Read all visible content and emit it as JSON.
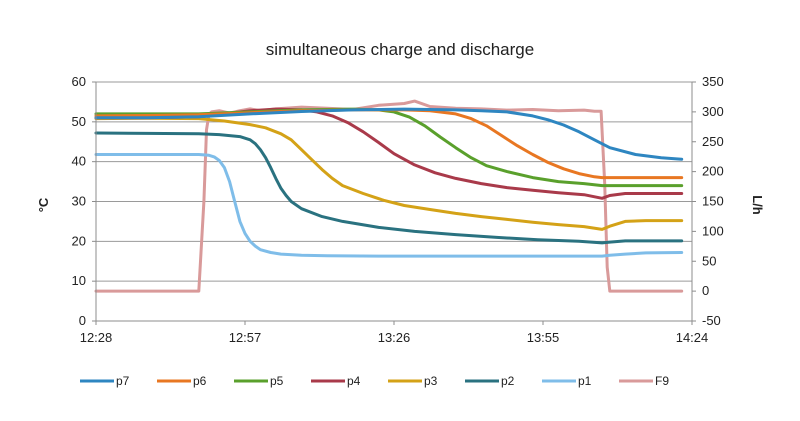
{
  "chart_data": {
    "type": "line",
    "title": "simultaneous charge and discharge",
    "ylabel": "°C",
    "y2label": "L/h",
    "xlim": [
      0,
      116
    ],
    "ylim": [
      0,
      60
    ],
    "y2lim": [
      -50,
      350
    ],
    "x_ticks": [
      {
        "value": 0,
        "label": "12:28"
      },
      {
        "value": 29,
        "label": "12:57"
      },
      {
        "value": 58,
        "label": "13:26"
      },
      {
        "value": 87,
        "label": "13:55"
      },
      {
        "value": 116,
        "label": "14:24"
      }
    ],
    "y_ticks": [
      0,
      10,
      20,
      30,
      40,
      50,
      60
    ],
    "y2_ticks": [
      -50,
      0,
      50,
      100,
      150,
      200,
      250,
      300,
      350
    ],
    "grid": true,
    "legend_position": "bottom",
    "series": [
      {
        "name": "p7",
        "axis": "left",
        "color": "#2e86c1",
        "x": [
          0,
          10,
          20,
          30,
          40,
          50,
          60,
          70,
          75,
          80,
          85,
          88,
          91,
          94,
          97,
          100,
          105,
          110,
          114
        ],
        "y": [
          51,
          51,
          51.3,
          52,
          52.6,
          53,
          53.2,
          53,
          52.8,
          52.5,
          51.5,
          50.5,
          49.2,
          47.5,
          45.5,
          43.5,
          41.8,
          41,
          40.6
        ]
      },
      {
        "name": "p6",
        "axis": "left",
        "color": "#e87722",
        "x": [
          0,
          10,
          20,
          30,
          40,
          50,
          60,
          65,
          70,
          73,
          76,
          79,
          82,
          85,
          88,
          91,
          94,
          97,
          98.5,
          100,
          105,
          110,
          114
        ],
        "y": [
          51.5,
          51.6,
          51.8,
          52.3,
          52.8,
          53,
          53,
          52.8,
          52,
          50.8,
          49,
          46.5,
          44,
          41.8,
          39.8,
          38.2,
          37,
          36.2,
          36,
          36,
          36,
          36,
          36
        ]
      },
      {
        "name": "p5",
        "axis": "left",
        "color": "#5aa02c",
        "x": [
          0,
          10,
          20,
          30,
          40,
          50,
          55,
          58,
          61,
          64,
          67,
          70,
          73,
          76,
          80,
          85,
          90,
          95,
          98.5,
          100,
          105,
          110,
          114
        ],
        "y": [
          52,
          52,
          52,
          52.5,
          53,
          53.2,
          53,
          52.5,
          51.2,
          49,
          46.2,
          43.5,
          41,
          39,
          37.5,
          36,
          35,
          34.5,
          34,
          34,
          34,
          34,
          34
        ]
      },
      {
        "name": "p4",
        "axis": "left",
        "color": "#a93a4a",
        "x": [
          0,
          10,
          20,
          25,
          30,
          35,
          40,
          43,
          46,
          49,
          52,
          55,
          58,
          62,
          66,
          70,
          75,
          80,
          85,
          90,
          95,
          98.5,
          100,
          103,
          107,
          114
        ],
        "y": [
          51,
          51,
          51.3,
          52,
          52.8,
          53.2,
          53,
          52.5,
          51.5,
          49.8,
          47.5,
          44.8,
          42,
          39.2,
          37.2,
          35.8,
          34.5,
          33.5,
          32.8,
          32.2,
          31.7,
          30.8,
          31.5,
          32,
          32,
          32
        ]
      },
      {
        "name": "p3",
        "axis": "left",
        "color": "#d4a217",
        "x": [
          0,
          10,
          20,
          25,
          30,
          33,
          36,
          38,
          40,
          42,
          44,
          46,
          48,
          52,
          56,
          60,
          65,
          70,
          75,
          80,
          85,
          90,
          95,
          98.5,
          100,
          103,
          107,
          114
        ],
        "y": [
          50.8,
          50.9,
          50.8,
          50.2,
          49.3,
          48.5,
          47,
          45.5,
          43,
          40.5,
          38,
          35.8,
          34,
          32,
          30.3,
          29,
          28,
          27,
          26.2,
          25.5,
          24.8,
          24.2,
          23.7,
          23,
          23.8,
          25,
          25.2,
          25.2
        ]
      },
      {
        "name": "p2",
        "axis": "left",
        "color": "#2a7280",
        "x": [
          0,
          10,
          20,
          24,
          28,
          30,
          31,
          32,
          33,
          34,
          35,
          36,
          37,
          38,
          40,
          44,
          48,
          55,
          62,
          70,
          78,
          86,
          94,
          98.5,
          100,
          103,
          107,
          114
        ],
        "y": [
          47.2,
          47.1,
          47,
          46.8,
          46.3,
          45.5,
          44.5,
          43,
          41,
          38.5,
          35.8,
          33.3,
          31.5,
          30,
          28.2,
          26.2,
          25,
          23.5,
          22.5,
          21.7,
          21,
          20.4,
          20,
          19.6,
          19.8,
          20.1,
          20.1,
          20.1
        ]
      },
      {
        "name": "p1",
        "axis": "left",
        "color": "#7fbde9",
        "x": [
          0,
          10,
          20,
          22,
          23,
          24,
          25,
          26,
          27,
          28,
          29,
          30,
          31,
          32,
          34,
          36,
          40,
          45,
          55,
          65,
          75,
          85,
          95,
          98.5,
          100,
          103,
          107,
          114
        ],
        "y": [
          41.8,
          41.8,
          41.8,
          41.6,
          41.2,
          40.3,
          38.5,
          35,
          30,
          25,
          22,
          20,
          18.8,
          17.9,
          17.2,
          16.8,
          16.5,
          16.4,
          16.3,
          16.3,
          16.3,
          16.3,
          16.3,
          16.3,
          16.5,
          16.8,
          17.1,
          17.2
        ]
      },
      {
        "name": "F9",
        "axis": "right",
        "color": "#d99a9a",
        "x": [
          0,
          5,
          10,
          15,
          20,
          21,
          21.5,
          22,
          22.5,
          24,
          26,
          28,
          30,
          32,
          35,
          40,
          45,
          50,
          55,
          60,
          62,
          65,
          70,
          75,
          80,
          85,
          90,
          95,
          97,
          98.3,
          99,
          99.5,
          100,
          101,
          105,
          110,
          114
        ],
        "y": [
          0,
          0,
          0,
          0,
          0,
          150,
          270,
          296,
          300,
          302,
          298,
          302,
          305,
          302,
          305,
          308,
          306,
          304,
          311,
          314,
          318,
          309,
          306,
          305,
          303,
          304,
          302,
          303,
          301,
          301,
          180,
          40,
          0,
          0,
          0,
          0,
          0
        ]
      }
    ]
  }
}
